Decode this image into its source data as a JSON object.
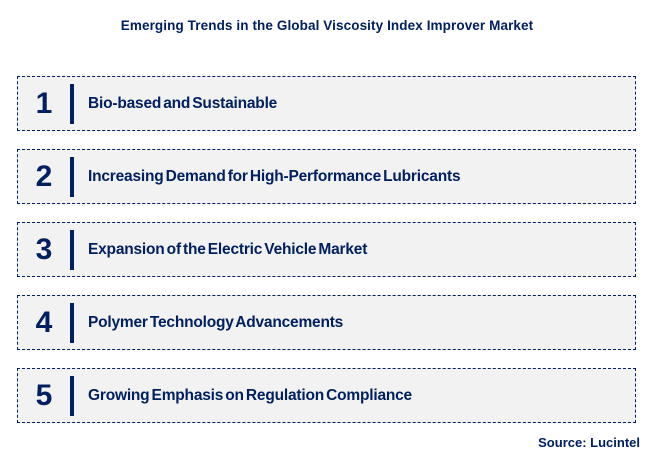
{
  "page": {
    "title": "Emerging Trends in the Global Viscosity Index Improver Market",
    "source_label": "Source: Lucintel"
  },
  "trends": [
    {
      "number": "1",
      "label": "Bio-based and Sustainable"
    },
    {
      "number": "2",
      "label": "Increasing Demand for High-Performance Lubricants"
    },
    {
      "number": "3",
      "label": "Expansion of the Electric Vehicle Market"
    },
    {
      "number": "4",
      "label": "Polymer Technology Advancements"
    },
    {
      "number": "5",
      "label": "Growing Emphasis on Regulation Compliance"
    }
  ],
  "colors": {
    "navy": "#002060",
    "row_background": "#f2f2f2",
    "page_background": "#ffffff"
  }
}
